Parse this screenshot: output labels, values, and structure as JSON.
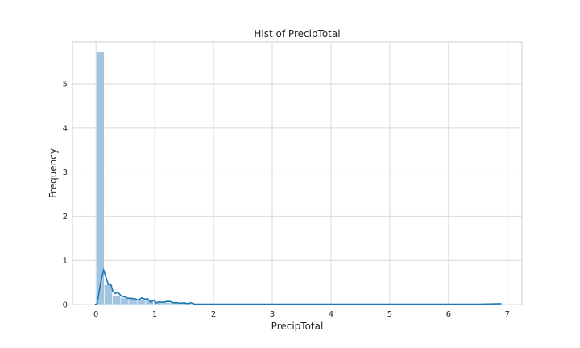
{
  "chart_data": {
    "type": "bar",
    "title": "Hist of PrecipTotal",
    "xlabel": "PrecipTotal",
    "ylabel": "Frequency",
    "xlim": [
      -0.4,
      7.25
    ],
    "ylim": [
      0,
      5.95
    ],
    "xticks": [
      0,
      1,
      2,
      3,
      4,
      5,
      6,
      7
    ],
    "yticks": [
      0,
      1,
      2,
      3,
      4,
      5
    ],
    "grid": true,
    "bar_color": "#a3c4de",
    "line_color": "#1f77b4",
    "bins": [
      {
        "x0": 0.0,
        "x1": 0.14,
        "height": 5.72
      },
      {
        "x0": 0.14,
        "x1": 0.28,
        "height": 0.45
      },
      {
        "x0": 0.28,
        "x1": 0.42,
        "height": 0.2
      },
      {
        "x0": 0.42,
        "x1": 0.56,
        "height": 0.15
      },
      {
        "x0": 0.56,
        "x1": 0.7,
        "height": 0.14
      },
      {
        "x0": 0.7,
        "x1": 0.84,
        "height": 0.11
      },
      {
        "x0": 0.84,
        "x1": 0.98,
        "height": 0.09
      },
      {
        "x0": 0.98,
        "x1": 1.12,
        "height": 0.07
      },
      {
        "x0": 1.12,
        "x1": 1.26,
        "height": 0.05
      },
      {
        "x0": 1.26,
        "x1": 1.4,
        "height": 0.05
      },
      {
        "x0": 1.4,
        "x1": 1.54,
        "height": 0.03
      },
      {
        "x0": 1.54,
        "x1": 1.68,
        "height": 0.02
      }
    ],
    "density_line": {
      "x": [
        -0.02,
        0.02,
        0.06,
        0.1,
        0.13,
        0.17,
        0.21,
        0.25,
        0.29,
        0.33,
        0.37,
        0.41,
        0.45,
        0.5,
        0.55,
        0.6,
        0.66,
        0.72,
        0.78,
        0.83,
        0.88,
        0.93,
        0.98,
        1.03,
        1.08,
        1.14,
        1.2,
        1.26,
        1.32,
        1.38,
        1.44,
        1.5,
        1.56,
        1.62,
        1.68,
        1.8,
        2.0,
        2.4,
        3.0,
        3.6,
        4.2,
        4.8,
        5.4,
        6.0,
        6.5,
        6.9
      ],
      "y": [
        0.0,
        0.02,
        0.35,
        0.62,
        0.78,
        0.62,
        0.45,
        0.46,
        0.3,
        0.25,
        0.28,
        0.22,
        0.18,
        0.17,
        0.14,
        0.14,
        0.13,
        0.1,
        0.15,
        0.12,
        0.13,
        0.05,
        0.1,
        0.04,
        0.06,
        0.05,
        0.07,
        0.07,
        0.04,
        0.04,
        0.03,
        0.04,
        0.02,
        0.04,
        0.01,
        0.01,
        0.01,
        0.01,
        0.01,
        0.01,
        0.01,
        0.01,
        0.01,
        0.01,
        0.01,
        0.02
      ]
    }
  }
}
